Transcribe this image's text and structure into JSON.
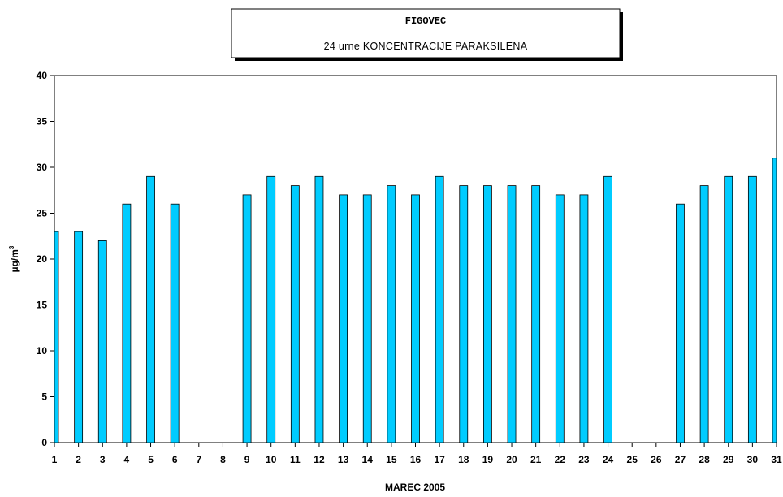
{
  "chart_data": {
    "type": "bar",
    "title": "FIGOVEC",
    "subtitle": "24 urne KONCENTRACIJE PARAKSILENA",
    "xlabel": "MAREC 2005",
    "ylabel": "µg/m",
    "ylabel_superscript": "3",
    "ylim": [
      0,
      40
    ],
    "yticks": [
      0,
      5,
      10,
      15,
      20,
      25,
      30,
      35,
      40
    ],
    "grid": false,
    "legend": "none",
    "bar_color": "#00ccff",
    "categories": [
      "1",
      "2",
      "3",
      "4",
      "5",
      "6",
      "7",
      "8",
      "9",
      "10",
      "11",
      "12",
      "13",
      "14",
      "15",
      "16",
      "17",
      "18",
      "19",
      "20",
      "21",
      "22",
      "23",
      "24",
      "25",
      "26",
      "27",
      "28",
      "29",
      "30",
      "31"
    ],
    "values": [
      23,
      23,
      22,
      26,
      29,
      26,
      null,
      null,
      27,
      29,
      28,
      29,
      27,
      27,
      28,
      27,
      29,
      28,
      28,
      28,
      28,
      27,
      27,
      29,
      null,
      null,
      26,
      28,
      29,
      29,
      31
    ]
  }
}
